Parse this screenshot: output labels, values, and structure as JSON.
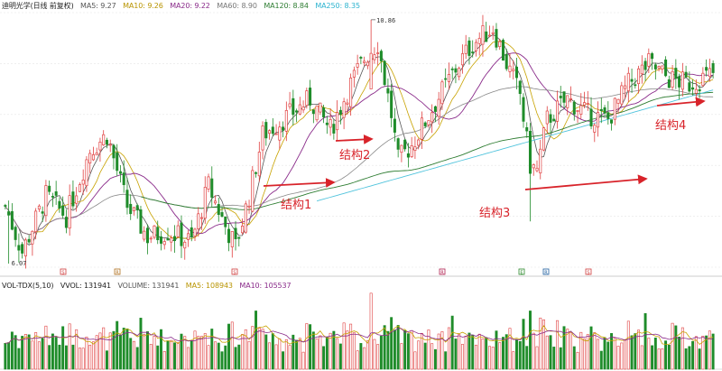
{
  "colors": {
    "up": "#e04040",
    "down": "#1f8c2a",
    "ma5": "#555555",
    "ma10": "#c8a200",
    "ma20": "#8a2b8a",
    "ma60": "#888888",
    "ma120": "#2e7d32",
    "ma250": "#4fc3dc",
    "arrow": "#d8232a",
    "grid": "#e6e6e6"
  },
  "price_legend": {
    "title": "迪明光学(日线 前复权)",
    "ma5": "MA5: 9.27",
    "ma10": "MA10: 9.26",
    "ma20": "MA20: 9.22",
    "ma60": "MA60: 8.90",
    "ma120": "MA120: 8.84",
    "ma250": "MA250: 8.35"
  },
  "volume_legend": {
    "title": "VOL-TDX(5,10)",
    "vvol": "VVOL: 131941",
    "volume": "VOLUME: 131941",
    "ma5": "MA5: 108943",
    "ma10": "MA10: 105537"
  },
  "annotations": [
    {
      "label": "结构1"
    },
    {
      "label": "结构2"
    },
    {
      "label": "结构3"
    },
    {
      "label": "结构4"
    }
  ],
  "chart_data": {
    "type": "candlestick",
    "price_high_label": "10.86",
    "price_low_label": "6.07",
    "ylim": [
      6.0,
      11.0
    ],
    "key_prices": {
      "high": 10.86,
      "low": 6.07
    },
    "markers": [
      "S",
      "R",
      "S",
      "R",
      "E",
      "R",
      "S"
    ],
    "series_ma_last": {
      "ma5": 9.27,
      "ma10": 9.26,
      "ma20": 9.22,
      "ma60": 8.9,
      "ma120": 8.84,
      "ma250": 8.35
    },
    "volume_last": {
      "vvol": 131941,
      "volume": 131941,
      "ma5": 108943,
      "ma10": 105537
    }
  }
}
